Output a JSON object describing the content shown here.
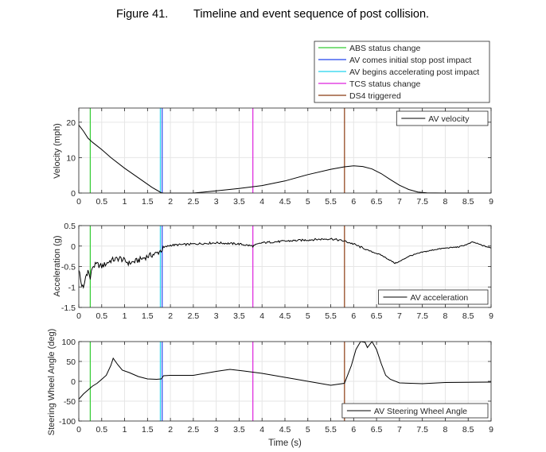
{
  "caption": {
    "label": "Figure 41.",
    "title": "Timeline and event sequence of post collision."
  },
  "colors": {
    "axis": "#262626",
    "grid": "#e6e6e6",
    "data": "#000000"
  },
  "events": [
    {
      "label": "ABS status change",
      "x": 0.25,
      "color": "#33cc33"
    },
    {
      "label": "AV comes initial stop post impact",
      "x": 1.82,
      "color": "#2244ee"
    },
    {
      "label": "AV begins accelerating post impact",
      "x": 1.78,
      "color": "#22d4ee"
    },
    {
      "label": "TCS status change",
      "x": 3.8,
      "color": "#dd22dd"
    },
    {
      "label": "DS4 triggered",
      "x": 5.8,
      "color": "#8b3a10"
    }
  ],
  "chart_data": [
    {
      "type": "line",
      "title": "",
      "xlabel": "",
      "ylabel": "Velocity (mph)",
      "xlim": [
        0,
        9
      ],
      "ylim": [
        0,
        24
      ],
      "xticks": [
        0,
        0.5,
        1,
        1.5,
        2,
        2.5,
        3,
        3.5,
        4,
        4.5,
        5,
        5.5,
        6,
        6.5,
        7,
        7.5,
        8,
        8.5,
        9
      ],
      "yticks": [
        0,
        10,
        20
      ],
      "grid": true,
      "legend_position": "top-right",
      "series": [
        {
          "name": "AV velocity",
          "noise": 0,
          "x": [
            0,
            0.1,
            0.2,
            0.3,
            0.5,
            0.7,
            1.0,
            1.3,
            1.6,
            1.8,
            1.85,
            2.5,
            3.0,
            3.5,
            4.0,
            4.5,
            5.0,
            5.5,
            5.8,
            6.0,
            6.2,
            6.4,
            6.6,
            6.8,
            7.0,
            7.2,
            7.4,
            7.6,
            8.0,
            9.0
          ],
          "y": [
            19.2,
            17.5,
            15.5,
            14.3,
            12.3,
            10.0,
            7.0,
            4.3,
            1.6,
            0.1,
            0,
            0,
            0.6,
            1.3,
            2.1,
            3.4,
            5.2,
            6.7,
            7.4,
            7.7,
            7.5,
            6.8,
            5.5,
            3.8,
            2.2,
            1.0,
            0.3,
            0.05,
            0,
            0
          ]
        }
      ]
    },
    {
      "type": "line",
      "title": "",
      "xlabel": "",
      "ylabel": "Acceleration (g)",
      "xlim": [
        0,
        9
      ],
      "ylim": [
        -1.5,
        0.5
      ],
      "xticks": [
        0,
        0.5,
        1,
        1.5,
        2,
        2.5,
        3,
        3.5,
        4,
        4.5,
        5,
        5.5,
        6,
        6.5,
        7,
        7.5,
        8,
        8.5,
        9
      ],
      "yticks": [
        -1.5,
        -1,
        -0.5,
        0,
        0.5
      ],
      "grid": true,
      "legend_position": "bottom-right",
      "series": [
        {
          "name": "AV acceleration",
          "noise": 1,
          "x": [
            0,
            0.05,
            0.1,
            0.15,
            0.2,
            0.25,
            0.3,
            0.4,
            0.5,
            0.7,
            0.9,
            1.1,
            1.3,
            1.5,
            1.7,
            1.8,
            1.9,
            2.0,
            2.5,
            3.0,
            3.5,
            3.8,
            4.0,
            4.5,
            5.0,
            5.5,
            5.8,
            6.0,
            6.3,
            6.6,
            6.8,
            6.9,
            7.0,
            7.2,
            7.5,
            7.8,
            8.0,
            8.3,
            8.5,
            8.6,
            8.8,
            9.0
          ],
          "y": [
            -0.55,
            -0.9,
            -1.05,
            -0.75,
            -0.6,
            -0.8,
            -0.5,
            -0.45,
            -0.5,
            -0.35,
            -0.3,
            -0.42,
            -0.35,
            -0.25,
            -0.18,
            -0.1,
            -0.02,
            0.02,
            0.05,
            0.08,
            0.05,
            0.0,
            0.08,
            0.12,
            0.15,
            0.18,
            0.12,
            0.05,
            -0.1,
            -0.22,
            -0.35,
            -0.42,
            -0.38,
            -0.25,
            -0.15,
            -0.08,
            -0.05,
            -0.02,
            0.05,
            0.1,
            0.02,
            -0.05
          ]
        }
      ]
    },
    {
      "type": "line",
      "title": "",
      "xlabel": "Time (s)",
      "ylabel": "Steering Wheel Angle (deg)",
      "xlim": [
        0,
        9
      ],
      "ylim": [
        -100,
        100
      ],
      "xticks": [
        0,
        0.5,
        1,
        1.5,
        2,
        2.5,
        3,
        3.5,
        4,
        4.5,
        5,
        5.5,
        6,
        6.5,
        7,
        7.5,
        8,
        8.5,
        9
      ],
      "yticks": [
        -100,
        -50,
        0,
        50,
        100
      ],
      "grid": true,
      "legend_position": "bottom-right",
      "series": [
        {
          "name": "AV Steering Wheel Angle",
          "noise": 0,
          "x": [
            0,
            0.1,
            0.2,
            0.3,
            0.4,
            0.5,
            0.6,
            0.7,
            0.75,
            0.85,
            0.95,
            1.1,
            1.3,
            1.5,
            1.7,
            1.8,
            1.85,
            2.0,
            2.5,
            3.0,
            3.3,
            3.6,
            4.0,
            4.5,
            5.0,
            5.5,
            5.8,
            5.95,
            6.05,
            6.15,
            6.25,
            6.3,
            6.4,
            6.5,
            6.6,
            6.7,
            6.8,
            7.0,
            7.5,
            8.0,
            9.0
          ],
          "y": [
            -45,
            -32,
            -22,
            -12,
            -5,
            5,
            15,
            40,
            58,
            42,
            28,
            22,
            12,
            6,
            5,
            6,
            14,
            15,
            15,
            25,
            30,
            26,
            20,
            10,
            0,
            -10,
            -5,
            40,
            80,
            100,
            98,
            85,
            100,
            80,
            45,
            15,
            5,
            -4,
            -6,
            -3,
            -2
          ]
        }
      ]
    }
  ]
}
